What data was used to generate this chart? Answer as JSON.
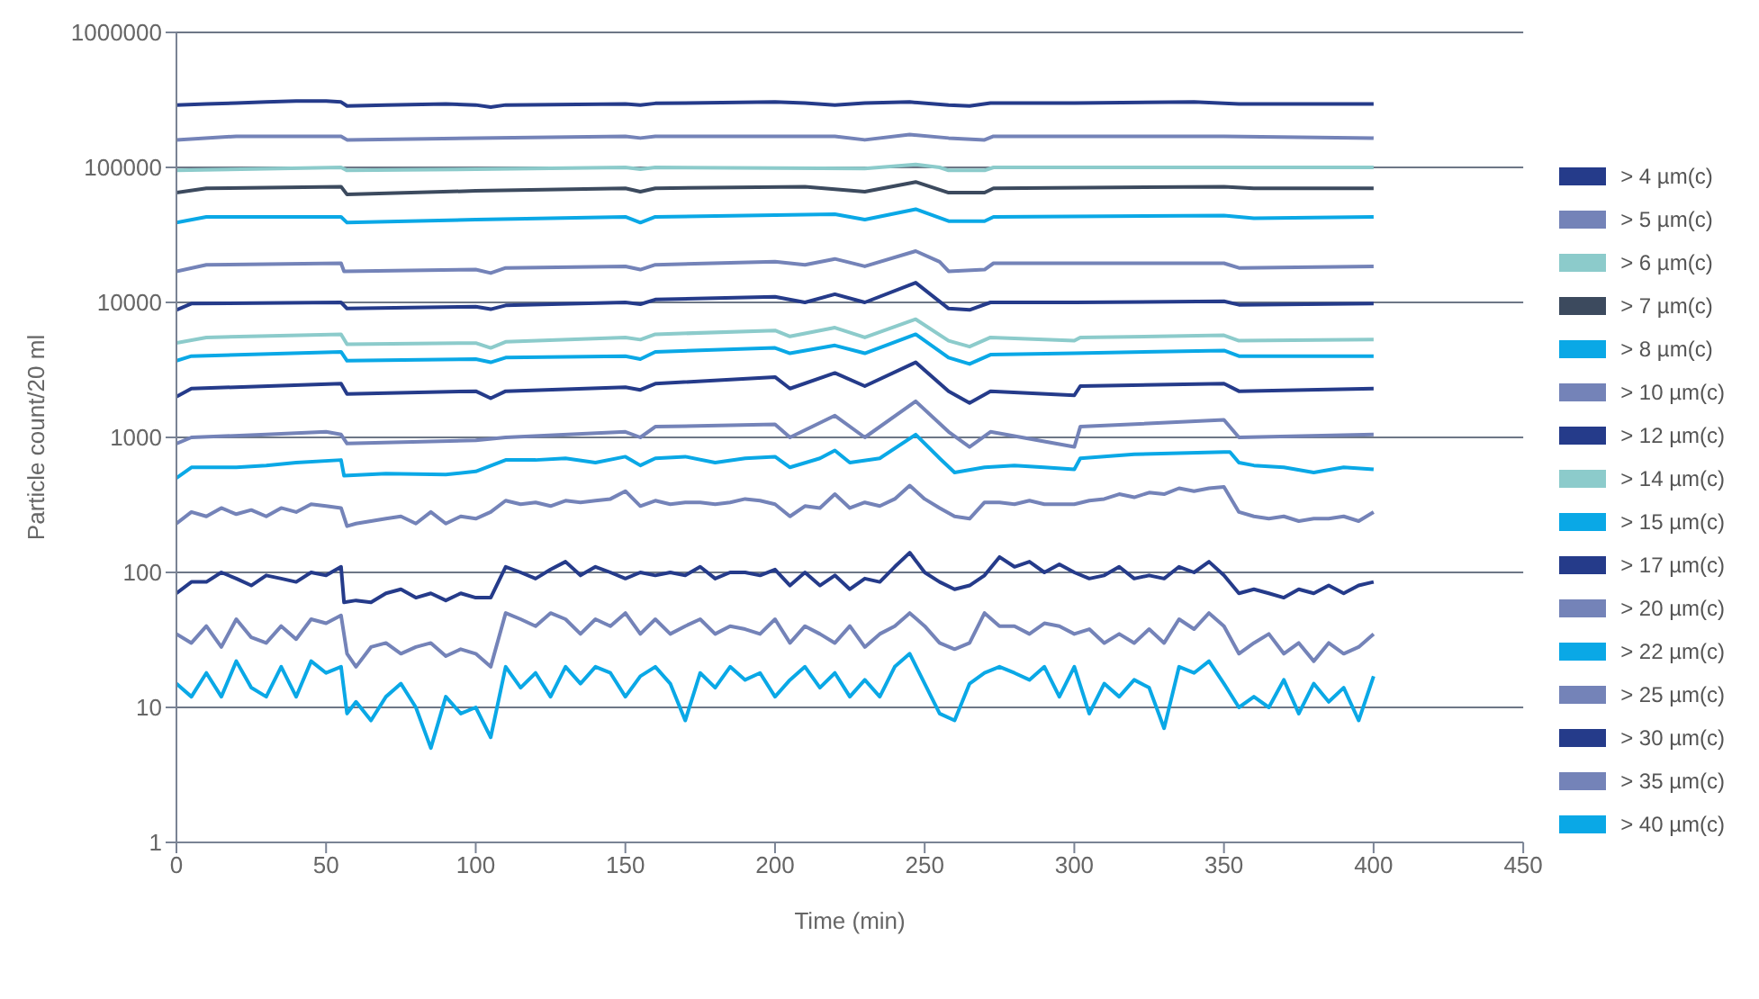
{
  "chart_data": {
    "type": "line",
    "xlabel": "Time (min)",
    "ylabel": "Particle count/20 ml",
    "log": "y",
    "grid": "y",
    "legend": "right",
    "marker": "none",
    "line_style": "solid",
    "xlim": [
      0,
      450
    ],
    "xticks": [
      0,
      50,
      100,
      150,
      200,
      250,
      300,
      350,
      400,
      450
    ],
    "ylim": [
      1,
      1000000
    ],
    "yticks": [
      1,
      10,
      100,
      1000,
      10000,
      100000,
      1000000
    ],
    "series": [
      {
        "name": "> 4 µm(c)",
        "color": "#253b8a",
        "x": [
          0,
          10,
          20,
          30,
          40,
          50,
          55,
          57,
          70,
          90,
          100,
          105,
          110,
          150,
          155,
          160,
          200,
          210,
          220,
          230,
          245,
          258,
          265,
          272,
          300,
          340,
          355,
          400
        ],
        "values": [
          290000,
          295000,
          300000,
          305000,
          310000,
          310000,
          305000,
          285000,
          290000,
          295000,
          290000,
          280000,
          290000,
          295000,
          290000,
          298000,
          305000,
          300000,
          290000,
          300000,
          305000,
          290000,
          285000,
          300000,
          300000,
          305000,
          295000,
          295000
        ]
      },
      {
        "name": "> 5 µm(c)",
        "color": "#7483b8",
        "x": [
          0,
          20,
          55,
          57,
          100,
          150,
          155,
          160,
          220,
          230,
          245,
          258,
          270,
          273,
          300,
          350,
          400
        ],
        "values": [
          160000,
          170000,
          170000,
          160000,
          165000,
          170000,
          165000,
          170000,
          170000,
          160000,
          175000,
          165000,
          160000,
          170000,
          170000,
          170000,
          165000
        ]
      },
      {
        "name": "> 6 µm(c)",
        "color": "#8ccbcb",
        "x": [
          0,
          55,
          57,
          100,
          150,
          155,
          160,
          230,
          247,
          255,
          258,
          270,
          273,
          350,
          400
        ],
        "values": [
          95000,
          100000,
          95000,
          97000,
          100000,
          97000,
          100000,
          98000,
          105000,
          100000,
          95000,
          95000,
          100000,
          100000,
          100000
        ]
      },
      {
        "name": "> 7 µm(c)",
        "color": "#3c4a5e",
        "x": [
          0,
          10,
          55,
          57,
          100,
          150,
          155,
          160,
          210,
          230,
          247,
          258,
          270,
          273,
          350,
          360,
          400
        ],
        "values": [
          65000,
          70000,
          72000,
          63000,
          67000,
          70000,
          66000,
          70000,
          72000,
          66000,
          78000,
          65000,
          65000,
          70000,
          72000,
          70000,
          70000
        ]
      },
      {
        "name": "> 8 µm(c)",
        "color": "#0aa8e6",
        "x": [
          0,
          10,
          55,
          57,
          100,
          150,
          155,
          160,
          220,
          230,
          247,
          258,
          270,
          273,
          350,
          360,
          400
        ],
        "values": [
          39000,
          43000,
          43000,
          39000,
          41000,
          43000,
          39000,
          43000,
          45000,
          41000,
          49000,
          40000,
          40000,
          43000,
          44000,
          42000,
          43000
        ]
      },
      {
        "name": "> 10 µm(c)",
        "color": "#7483b8",
        "x": [
          0,
          10,
          55,
          56,
          100,
          105,
          110,
          150,
          155,
          160,
          200,
          210,
          220,
          230,
          247,
          255,
          258,
          270,
          273,
          350,
          355,
          400
        ],
        "values": [
          17000,
          19000,
          19500,
          17000,
          17500,
          16500,
          18000,
          18500,
          17500,
          19000,
          20000,
          19000,
          21000,
          18500,
          24000,
          20000,
          17000,
          17500,
          19500,
          19500,
          18000,
          18500
        ]
      },
      {
        "name": "> 12 µm(c)",
        "color": "#253b8a",
        "x": [
          0,
          5,
          55,
          57,
          100,
          105,
          110,
          150,
          155,
          160,
          200,
          210,
          220,
          230,
          247,
          258,
          265,
          272,
          300,
          350,
          355,
          400
        ],
        "values": [
          8800,
          9800,
          10000,
          9000,
          9300,
          8900,
          9500,
          10000,
          9700,
          10500,
          11000,
          10000,
          11500,
          10000,
          14000,
          9000,
          8800,
          10000,
          10000,
          10200,
          9600,
          9800
        ]
      },
      {
        "name": "> 14 µm(c)",
        "color": "#8ccbcb",
        "x": [
          0,
          10,
          55,
          57,
          100,
          105,
          110,
          150,
          155,
          160,
          200,
          205,
          220,
          230,
          247,
          258,
          265,
          272,
          300,
          302,
          350,
          355,
          400
        ],
        "values": [
          5000,
          5500,
          5800,
          4900,
          5000,
          4600,
          5100,
          5500,
          5300,
          5800,
          6200,
          5600,
          6500,
          5500,
          7500,
          5200,
          4700,
          5500,
          5200,
          5500,
          5700,
          5200,
          5300
        ]
      },
      {
        "name": "> 15 µm(c)",
        "color": "#0aa8e6",
        "x": [
          0,
          5,
          55,
          57,
          100,
          105,
          110,
          150,
          155,
          160,
          200,
          205,
          220,
          230,
          247,
          258,
          265,
          272,
          300,
          350,
          355,
          400
        ],
        "values": [
          3700,
          4000,
          4300,
          3700,
          3800,
          3600,
          3900,
          4000,
          3800,
          4300,
          4600,
          4200,
          4800,
          4200,
          5800,
          3900,
          3500,
          4100,
          4200,
          4400,
          4000,
          4000
        ]
      },
      {
        "name": "> 17 µm(c)",
        "color": "#253b8a",
        "x": [
          0,
          5,
          55,
          57,
          100,
          105,
          110,
          150,
          155,
          160,
          200,
          205,
          220,
          230,
          247,
          258,
          265,
          272,
          300,
          302,
          350,
          355,
          400
        ],
        "values": [
          2000,
          2300,
          2500,
          2100,
          2200,
          1950,
          2200,
          2350,
          2250,
          2500,
          2800,
          2300,
          3000,
          2400,
          3600,
          2200,
          1800,
          2200,
          2050,
          2400,
          2500,
          2200,
          2300
        ]
      },
      {
        "name": "> 20 µm(c)",
        "color": "#7483b8",
        "x": [
          0,
          5,
          30,
          50,
          55,
          57,
          100,
          110,
          150,
          155,
          160,
          200,
          205,
          220,
          230,
          247,
          258,
          265,
          272,
          300,
          302,
          350,
          355,
          400
        ],
        "values": [
          900,
          1000,
          1050,
          1100,
          1050,
          900,
          950,
          1000,
          1100,
          1000,
          1200,
          1250,
          1000,
          1450,
          1000,
          1850,
          1100,
          850,
          1100,
          850,
          1200,
          1350,
          1000,
          1050
        ]
      },
      {
        "name": "> 22 µm(c)",
        "color": "#0aa8e6",
        "x": [
          0,
          5,
          20,
          30,
          40,
          55,
          56,
          70,
          90,
          100,
          110,
          120,
          130,
          140,
          150,
          155,
          160,
          170,
          180,
          190,
          200,
          205,
          215,
          220,
          225,
          235,
          247,
          255,
          260,
          270,
          280,
          290,
          300,
          302,
          320,
          350,
          352,
          355,
          360,
          370,
          380,
          390,
          400
        ],
        "values": [
          500,
          600,
          600,
          620,
          650,
          680,
          520,
          540,
          530,
          560,
          680,
          680,
          700,
          650,
          720,
          620,
          700,
          720,
          650,
          700,
          720,
          600,
          700,
          800,
          650,
          700,
          1050,
          700,
          550,
          600,
          620,
          600,
          580,
          700,
          750,
          780,
          780,
          650,
          620,
          600,
          550,
          600,
          580
        ]
      },
      {
        "name": "> 25 µm(c)",
        "color": "#7483b8",
        "x": [
          0,
          5,
          10,
          15,
          20,
          25,
          30,
          35,
          40,
          45,
          50,
          55,
          57,
          60,
          65,
          70,
          75,
          80,
          85,
          90,
          95,
          100,
          105,
          110,
          115,
          120,
          125,
          130,
          135,
          140,
          145,
          150,
          155,
          160,
          165,
          170,
          175,
          180,
          185,
          190,
          195,
          200,
          205,
          210,
          215,
          220,
          225,
          230,
          235,
          240,
          245,
          250,
          255,
          260,
          265,
          270,
          275,
          280,
          285,
          290,
          295,
          300,
          305,
          310,
          315,
          320,
          325,
          330,
          335,
          340,
          345,
          350,
          355,
          360,
          365,
          370,
          375,
          380,
          385,
          390,
          395,
          400
        ],
        "values": [
          230,
          280,
          260,
          300,
          270,
          290,
          260,
          300,
          280,
          320,
          310,
          300,
          220,
          230,
          240,
          250,
          260,
          230,
          280,
          230,
          260,
          250,
          280,
          340,
          320,
          330,
          310,
          340,
          330,
          340,
          350,
          400,
          310,
          340,
          320,
          330,
          330,
          320,
          330,
          350,
          340,
          320,
          260,
          310,
          300,
          380,
          300,
          330,
          310,
          350,
          440,
          350,
          300,
          260,
          250,
          330,
          330,
          320,
          340,
          320,
          320,
          320,
          340,
          350,
          380,
          360,
          390,
          380,
          420,
          400,
          420,
          430,
          280,
          260,
          250,
          260,
          240,
          250,
          250,
          260,
          240,
          280
        ]
      },
      {
        "name": "> 30 µm(c)",
        "color": "#253b8a",
        "x": [
          0,
          5,
          10,
          15,
          20,
          25,
          30,
          35,
          40,
          45,
          50,
          55,
          56,
          60,
          65,
          70,
          75,
          80,
          85,
          90,
          95,
          100,
          105,
          110,
          115,
          120,
          125,
          130,
          135,
          140,
          145,
          150,
          155,
          160,
          165,
          170,
          175,
          180,
          185,
          190,
          195,
          200,
          205,
          210,
          215,
          220,
          225,
          230,
          235,
          240,
          245,
          250,
          255,
          260,
          265,
          270,
          275,
          280,
          285,
          290,
          295,
          300,
          305,
          310,
          315,
          320,
          325,
          330,
          335,
          340,
          345,
          350,
          355,
          360,
          365,
          370,
          375,
          380,
          385,
          390,
          395,
          400
        ],
        "values": [
          70,
          85,
          85,
          100,
          90,
          80,
          95,
          90,
          85,
          100,
          95,
          110,
          60,
          62,
          60,
          70,
          75,
          65,
          70,
          62,
          70,
          65,
          65,
          110,
          100,
          90,
          105,
          120,
          95,
          110,
          100,
          90,
          100,
          95,
          100,
          95,
          110,
          90,
          100,
          100,
          95,
          105,
          80,
          100,
          80,
          95,
          75,
          90,
          85,
          110,
          140,
          100,
          85,
          75,
          80,
          95,
          130,
          110,
          120,
          100,
          115,
          100,
          90,
          95,
          110,
          90,
          95,
          90,
          110,
          100,
          120,
          95,
          70,
          75,
          70,
          65,
          75,
          70,
          80,
          70,
          80,
          85
        ]
      },
      {
        "name": "> 35 µm(c)",
        "color": "#7483b8",
        "x": [
          0,
          5,
          10,
          15,
          20,
          25,
          30,
          35,
          40,
          45,
          50,
          55,
          57,
          60,
          65,
          70,
          75,
          80,
          85,
          90,
          95,
          100,
          105,
          110,
          115,
          120,
          125,
          130,
          135,
          140,
          145,
          150,
          155,
          160,
          165,
          170,
          175,
          180,
          185,
          190,
          195,
          200,
          205,
          210,
          215,
          220,
          225,
          230,
          235,
          240,
          245,
          250,
          255,
          260,
          265,
          270,
          275,
          280,
          285,
          290,
          295,
          300,
          305,
          310,
          315,
          320,
          325,
          330,
          335,
          340,
          345,
          350,
          355,
          360,
          365,
          370,
          375,
          380,
          385,
          390,
          395,
          400
        ],
        "values": [
          35,
          30,
          40,
          28,
          45,
          33,
          30,
          40,
          32,
          45,
          42,
          48,
          25,
          20,
          28,
          30,
          25,
          28,
          30,
          24,
          27,
          25,
          20,
          50,
          45,
          40,
          50,
          45,
          35,
          45,
          40,
          50,
          35,
          45,
          35,
          40,
          45,
          35,
          40,
          38,
          35,
          45,
          30,
          40,
          35,
          30,
          40,
          28,
          35,
          40,
          50,
          40,
          30,
          27,
          30,
          50,
          40,
          40,
          35,
          42,
          40,
          35,
          38,
          30,
          35,
          30,
          38,
          30,
          45,
          38,
          50,
          40,
          25,
          30,
          35,
          25,
          30,
          22,
          30,
          25,
          28,
          35
        ]
      },
      {
        "name": "> 40 µm(c)",
        "color": "#0aa8e6",
        "x": [
          0,
          5,
          10,
          15,
          20,
          25,
          30,
          35,
          40,
          45,
          50,
          55,
          57,
          60,
          65,
          70,
          75,
          80,
          85,
          90,
          95,
          100,
          105,
          110,
          115,
          120,
          125,
          130,
          135,
          140,
          145,
          150,
          155,
          160,
          165,
          170,
          175,
          180,
          185,
          190,
          195,
          200,
          205,
          210,
          215,
          220,
          225,
          230,
          235,
          240,
          245,
          250,
          255,
          260,
          265,
          270,
          275,
          280,
          285,
          290,
          295,
          300,
          305,
          310,
          315,
          320,
          325,
          330,
          335,
          340,
          345,
          350,
          355,
          360,
          365,
          370,
          375,
          380,
          385,
          390,
          395,
          400
        ],
        "values": [
          15,
          12,
          18,
          12,
          22,
          14,
          12,
          20,
          12,
          22,
          18,
          20,
          9,
          11,
          8,
          12,
          15,
          10,
          5,
          12,
          9,
          10,
          6,
          20,
          14,
          18,
          12,
          20,
          15,
          20,
          18,
          12,
          17,
          20,
          15,
          8,
          18,
          14,
          20,
          16,
          18,
          12,
          16,
          20,
          14,
          18,
          12,
          16,
          12,
          20,
          25,
          15,
          9,
          8,
          15,
          18,
          20,
          18,
          16,
          20,
          12,
          20,
          9,
          15,
          12,
          16,
          14,
          7,
          20,
          18,
          22,
          15,
          10,
          12,
          10,
          16,
          9,
          15,
          11,
          14,
          8,
          17
        ]
      }
    ]
  }
}
